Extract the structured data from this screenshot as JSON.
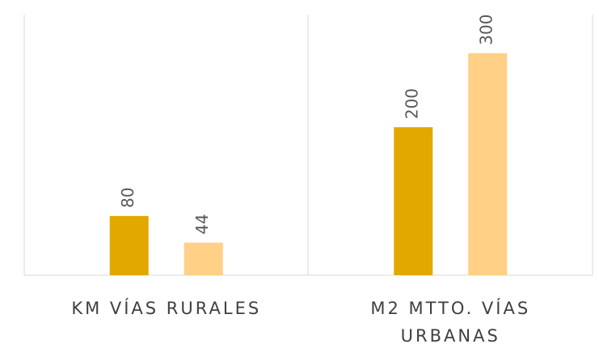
{
  "chart_data": {
    "type": "bar",
    "categories": [
      "KM VÍAS RURALES",
      "M2 MTTO. VÍAS URBANAS"
    ],
    "series": [
      {
        "color": "#E2A800",
        "values": [
          80,
          200
        ]
      },
      {
        "color": "#FFD086",
        "values": [
          44,
          300
        ]
      }
    ],
    "ylim": [
      0,
      350
    ]
  }
}
